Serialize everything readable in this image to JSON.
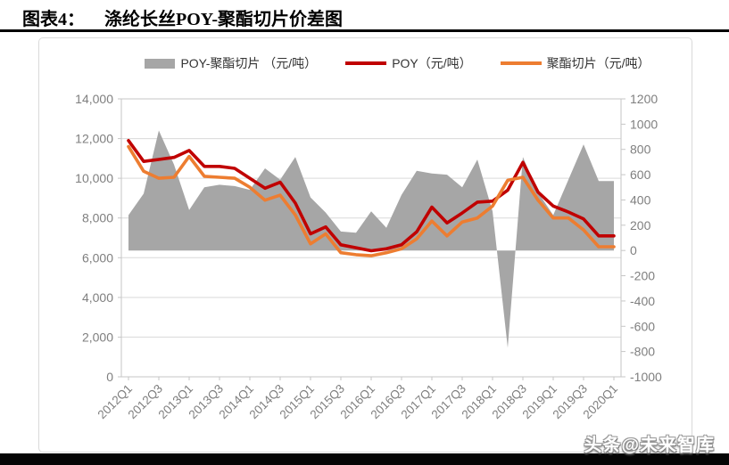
{
  "header": {
    "title_label": "图表4：",
    "title_text": "涤纶长丝POY-聚酯切片价差图"
  },
  "watermark": {
    "text": "头条@未来智库"
  },
  "colors": {
    "spread_area": "#A6A6A6",
    "poy_line": "#C00000",
    "chip_line": "#ED7D31",
    "grid": "#D9D9D9",
    "frame": "#C6C6C6",
    "axis_text": "#7F7F7F",
    "legend_text": "#333333",
    "title_rule": "#000000",
    "bottom_bar": "#050505"
  },
  "chart_data": {
    "type": "combo",
    "title": "涤纶长丝POY-聚酯切片价差图",
    "legend_position": "top",
    "grid": "horizontal",
    "categories": [
      "2012Q1",
      "2012Q2",
      "2012Q3",
      "2012Q4",
      "2013Q1",
      "2013Q2",
      "2013Q3",
      "2013Q4",
      "2014Q1",
      "2014Q2",
      "2014Q3",
      "2014Q4",
      "2015Q1",
      "2015Q2",
      "2015Q3",
      "2015Q4",
      "2016Q1",
      "2016Q2",
      "2016Q3",
      "2016Q4",
      "2017Q1",
      "2017Q2",
      "2017Q3",
      "2017Q4",
      "2018Q1",
      "2018Q2",
      "2018Q3",
      "2018Q4",
      "2019Q1",
      "2019Q2",
      "2019Q3",
      "2019Q4",
      "2020Q1"
    ],
    "x_tick_labels": [
      "2012Q1",
      "2012Q3",
      "2013Q1",
      "2013Q3",
      "2014Q1",
      "2014Q3",
      "2015Q1",
      "2015Q3",
      "2016Q1",
      "2016Q3",
      "2017Q1",
      "2017Q3",
      "2018Q1",
      "2018Q3",
      "2019Q1",
      "2019Q3",
      "2020Q1"
    ],
    "left_axis": {
      "min": 0,
      "max": 14000,
      "step": 2000,
      "tick_labels": [
        "0",
        "2,000",
        "4,000",
        "6,000",
        "8,000",
        "10,000",
        "12,000",
        "14,000"
      ]
    },
    "right_axis": {
      "min": -1000,
      "max": 1200,
      "step": 200,
      "tick_labels": [
        "-1000",
        "-800",
        "-600",
        "-400",
        "-200",
        "0",
        "200",
        "400",
        "600",
        "800",
        "1000",
        "1200"
      ]
    },
    "series": [
      {
        "name": "POY-聚酯切片（元/吨）",
        "legend_label": "POY-聚酯切片 （元/吨）",
        "type": "area",
        "axis": "right",
        "color": "#A6A6A6",
        "values": [
          280,
          450,
          950,
          680,
          320,
          500,
          520,
          510,
          480,
          650,
          560,
          740,
          420,
          300,
          150,
          140,
          310,
          180,
          440,
          630,
          610,
          600,
          500,
          720,
          310,
          -770,
          740,
          460,
          280,
          560,
          840,
          550,
          550
        ]
      },
      {
        "name": "POY（元/吨）",
        "legend_label": "POY（元/吨）",
        "type": "line",
        "axis": "left",
        "color": "#C00000",
        "values": [
          11900,
          10850,
          10950,
          11050,
          11400,
          10600,
          10600,
          10500,
          10000,
          9500,
          9800,
          8750,
          7200,
          7550,
          6650,
          6500,
          6350,
          6450,
          6650,
          7300,
          8550,
          7750,
          8250,
          8800,
          8850,
          9400,
          10800,
          9300,
          8600,
          8300,
          7950,
          7100,
          7100
        ]
      },
      {
        "name": "聚酯切片（元/吨）",
        "legend_label": "聚酯切片（元/吨）",
        "type": "line",
        "axis": "left",
        "color": "#ED7D31",
        "values": [
          11600,
          10350,
          10000,
          10050,
          11100,
          10100,
          10050,
          10000,
          9550,
          8900,
          9150,
          8150,
          6700,
          7200,
          6250,
          6150,
          6100,
          6250,
          6450,
          6950,
          7850,
          7100,
          7800,
          8000,
          8600,
          9900,
          10050,
          8900,
          8000,
          8000,
          7400,
          6550,
          6550
        ]
      }
    ]
  }
}
